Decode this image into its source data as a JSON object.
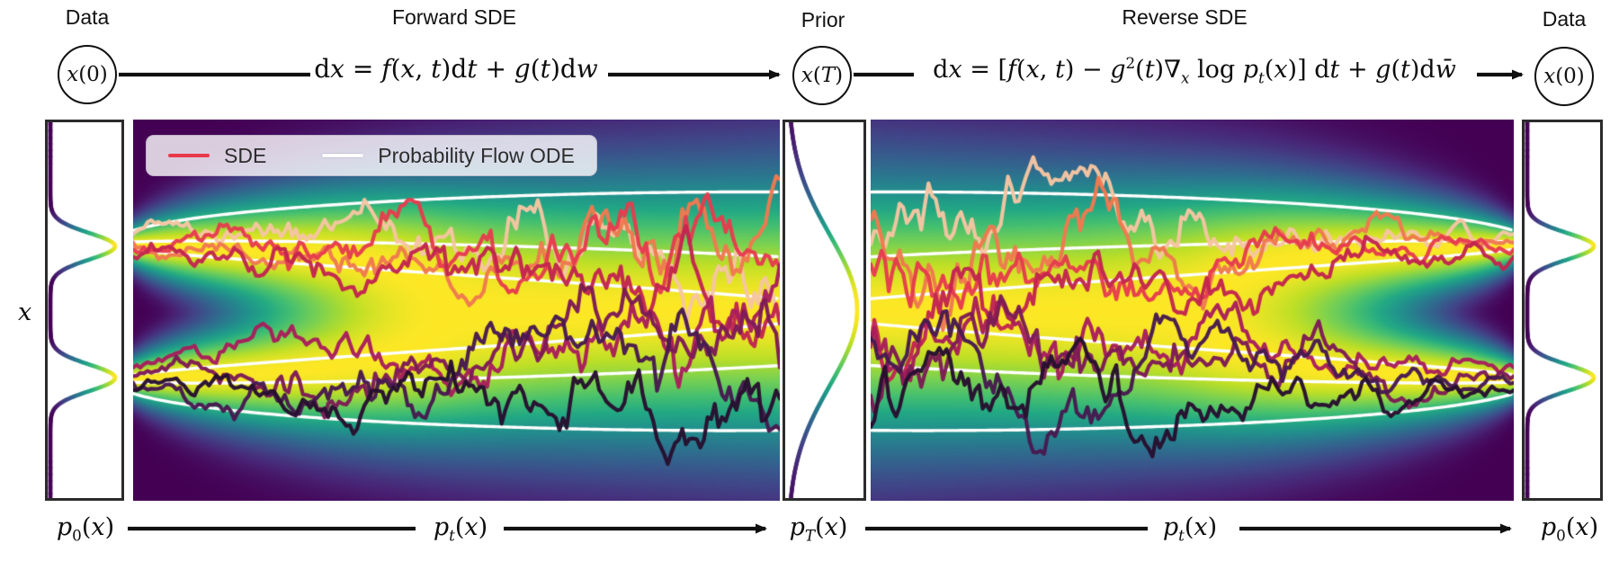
{
  "header": {
    "data_left_label": "Data",
    "forward_title": "Forward SDE",
    "prior_label": "Prior",
    "reverse_title": "Reverse SDE",
    "data_right_label": "Data",
    "node_x0": [
      {
        "t": "x",
        "s": "i"
      },
      {
        "t": "(0)"
      }
    ],
    "node_xT": [
      {
        "t": "x",
        "s": "i"
      },
      {
        "t": "("
      },
      {
        "t": "T",
        "s": "i"
      },
      {
        "t": ")"
      }
    ],
    "eq_forward": [
      {
        "t": "d"
      },
      {
        "t": "x",
        "s": "i"
      },
      {
        "t": " = "
      },
      {
        "t": "f",
        "s": "i"
      },
      {
        "t": "("
      },
      {
        "t": "x",
        "s": "i"
      },
      {
        "t": ", "
      },
      {
        "t": "t",
        "s": "i"
      },
      {
        "t": ")d"
      },
      {
        "t": "t",
        "s": "i"
      },
      {
        "t": " + "
      },
      {
        "t": "g",
        "s": "i"
      },
      {
        "t": "("
      },
      {
        "t": "t",
        "s": "i"
      },
      {
        "t": ")d"
      },
      {
        "t": "w",
        "s": "i"
      }
    ],
    "eq_reverse": [
      {
        "t": "d"
      },
      {
        "t": "x",
        "s": "i"
      },
      {
        "t": " = "
      },
      {
        "t": "["
      },
      {
        "t": "f",
        "s": "i"
      },
      {
        "t": "("
      },
      {
        "t": "x",
        "s": "i"
      },
      {
        "t": ", "
      },
      {
        "t": "t",
        "s": "i"
      },
      {
        "t": ") − "
      },
      {
        "t": "g",
        "s": "i"
      },
      {
        "t": "2",
        "s": "sup"
      },
      {
        "t": "("
      },
      {
        "t": "t",
        "s": "i"
      },
      {
        "t": ")∇"
      },
      {
        "t": "x",
        "s": "isub"
      },
      {
        "t": " log "
      },
      {
        "t": "p",
        "s": "i"
      },
      {
        "t": "t",
        "s": "isub"
      },
      {
        "t": "("
      },
      {
        "t": "x",
        "s": "i"
      },
      {
        "t": ")"
      },
      {
        "t": "] d"
      },
      {
        "t": "t",
        "s": "i"
      },
      {
        "t": " + "
      },
      {
        "t": "g",
        "s": "i"
      },
      {
        "t": "("
      },
      {
        "t": "t",
        "s": "i"
      },
      {
        "t": ")d"
      },
      {
        "t": "w̄",
        "s": "i"
      }
    ]
  },
  "legend": {
    "sde_label": "SDE",
    "ode_label": "Probability Flow ODE",
    "sde_color": "#e8394a",
    "ode_color": "#ffffff"
  },
  "axis": {
    "x_label": [
      {
        "t": "x",
        "s": "i"
      }
    ]
  },
  "footer": {
    "p0_left": [
      {
        "t": "p",
        "s": "i"
      },
      {
        "t": "0",
        "s": "sub"
      },
      {
        "t": "("
      },
      {
        "t": "x",
        "s": "i"
      },
      {
        "t": ")"
      }
    ],
    "pt_left": [
      {
        "t": "p",
        "s": "i"
      },
      {
        "t": "t",
        "s": "isub"
      },
      {
        "t": "("
      },
      {
        "t": "x",
        "s": "i"
      },
      {
        "t": ")"
      }
    ],
    "pT_mid": [
      {
        "t": "p",
        "s": "i"
      },
      {
        "t": "T",
        "s": "isub"
      },
      {
        "t": "("
      },
      {
        "t": "x",
        "s": "i"
      },
      {
        "t": ")"
      }
    ],
    "pt_right": [
      {
        "t": "p",
        "s": "i"
      },
      {
        "t": "t",
        "s": "isub"
      },
      {
        "t": "("
      },
      {
        "t": "x",
        "s": "i"
      },
      {
        "t": ")"
      }
    ],
    "p0_right": [
      {
        "t": "p",
        "s": "i"
      },
      {
        "t": "0",
        "s": "sub"
      },
      {
        "t": "("
      },
      {
        "t": "x",
        "s": "i"
      },
      {
        "t": ")"
      }
    ]
  },
  "chart_data": {
    "type": "heatmap",
    "title": "Score-based generative modeling: forward and reverse SDE densities",
    "layout": "data marginal | forward diffusion heatmap | prior marginal | reverse diffusion heatmap | data marginal",
    "colormap": {
      "name": "viridis",
      "stops": [
        "#440154",
        "#482475",
        "#414487",
        "#355f8d",
        "#2a788e",
        "#21918c",
        "#22a884",
        "#44bf70",
        "#7ad151",
        "#bddf26",
        "#fde725"
      ]
    },
    "density": {
      "modes_rel": [
        0.33,
        0.68
      ],
      "sigma_rel_data": 0.035,
      "sigma_rel_prior": 0.2,
      "mean_shrink": 0.72,
      "gamma": 0.72
    },
    "marginals": {
      "data": {
        "modes_rel": [
          0.33,
          0.68
        ],
        "sigma_rel": 0.035
      },
      "prior": {
        "modes_rel": [
          0.5
        ],
        "sigma_rel": 0.2
      }
    },
    "ode_curves": [
      {
        "comp": 0,
        "z": -1.1
      },
      {
        "comp": 0,
        "z": -0.25
      },
      {
        "comp": 0,
        "z": 0.3
      },
      {
        "comp": 1,
        "z": -0.3
      },
      {
        "comp": 1,
        "z": 0.25
      },
      {
        "comp": 1,
        "z": 1.1
      }
    ],
    "sde_paths": [
      {
        "color": "#f6c5a2",
        "comp": 0,
        "z": -0.85,
        "seed": 11,
        "seed_rev": 101
      },
      {
        "color": "#f0794f",
        "comp": 0,
        "z": -0.2,
        "seed": 23,
        "seed_rev": 113
      },
      {
        "color": "#e63c4e",
        "comp": 0,
        "z": 0.3,
        "seed": 37,
        "seed_rev": 127
      },
      {
        "color": "#c22550",
        "comp": 0,
        "z": 0.85,
        "seed": 47,
        "seed_rev": 131
      },
      {
        "color": "#a81e5c",
        "comp": 1,
        "z": -0.85,
        "seed": 59,
        "seed_rev": 149
      },
      {
        "color": "#7d1b56",
        "comp": 1,
        "z": -0.2,
        "seed": 67,
        "seed_rev": 151
      },
      {
        "color": "#471a50",
        "comp": 1,
        "z": 0.3,
        "seed": 79,
        "seed_rev": 163
      },
      {
        "color": "#27102f",
        "comp": 1,
        "z": 0.85,
        "seed": 97,
        "seed_rev": 179
      }
    ],
    "line_widths": {
      "ode": 3.4,
      "sde": 4.2,
      "marginal": 4.5
    }
  }
}
